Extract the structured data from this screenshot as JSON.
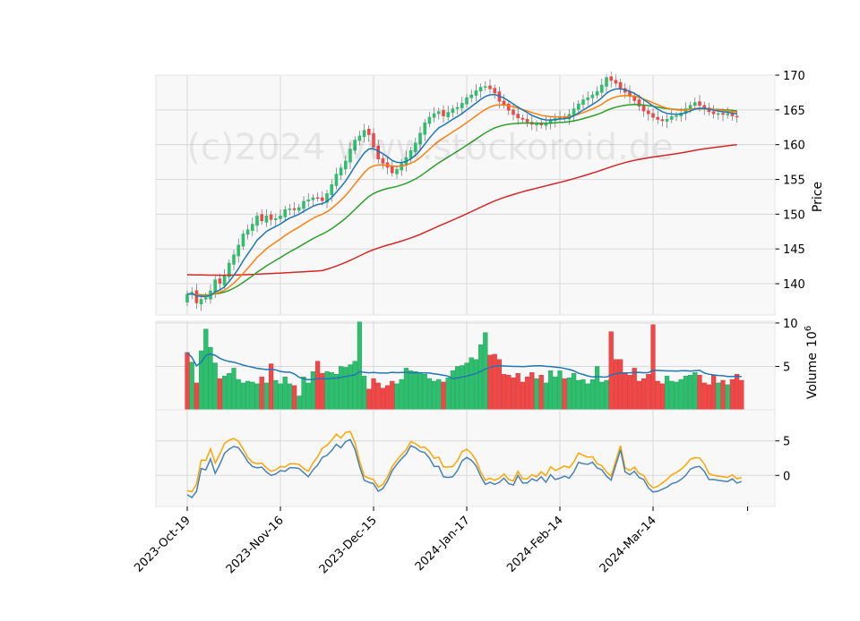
{
  "watermark": "(c)2024 www.stockoroid.de",
  "colors": {
    "panel_bg": "#f8f8f8",
    "grid": "#d9d9d9",
    "up": "#2ebf6e",
    "down": "#f04747",
    "ma_short": "#1f77b4",
    "ma_mid": "#ff7f0e",
    "ma_long": "#2ca02c",
    "ma_200": "#d62728",
    "volume_ma": "#1f77b4",
    "osc_a": "#4682b4",
    "osc_b": "#ffa500"
  },
  "chart_data": {
    "type": "candlestick",
    "price_panel": {
      "ylabel": "Price",
      "ylim": [
        135.5,
        170
      ],
      "yticks": [
        140,
        145,
        150,
        155,
        160,
        165,
        170
      ],
      "grid": true,
      "ticker_position": "right"
    },
    "volume_panel": {
      "ylabel": "Volume  $10^6$",
      "ylabel_text": "Volume",
      "ylabel_exp": "6",
      "ylabel_base": "10",
      "ylim": [
        0,
        10.2
      ],
      "yticks": [
        5,
        10
      ],
      "volume_ma_window": 20
    },
    "oscillator_panel": {
      "ylim": [
        -4.5,
        9.5
      ],
      "yticks": [
        0,
        5
      ]
    },
    "xticks": [
      {
        "index": 0,
        "label": "2023-Oct-19"
      },
      {
        "index": 20,
        "label": "2023-Nov-16"
      },
      {
        "index": 40,
        "label": "2023-Dec-15"
      },
      {
        "index": 60,
        "label": "2024-Jan-17"
      },
      {
        "index": 80,
        "label": "2024-Feb-14"
      },
      {
        "index": 100,
        "label": "2024-Mar-14"
      }
    ],
    "n_bars": 120,
    "start_close": 138.5,
    "close_changes": [
      0.3,
      -1.6,
      0.6,
      0.2,
      1.0,
      1.6,
      -0.6,
      1.2,
      1.8,
      1.2,
      1.4,
      1.6,
      0.6,
      0.8,
      1.2,
      -0.8,
      0.8,
      -0.6,
      0.2,
      0.4,
      0.9,
      0.1,
      -0.2,
      0.4,
      0.9,
      0.2,
      0.3,
      -0.1,
      -0.4,
      1.1,
      1.3,
      1.5,
      0.9,
      1.0,
      1.7,
      1.3,
      0.6,
      0.8,
      -0.7,
      -1.8,
      -1.7,
      -0.6,
      -0.6,
      -0.8,
      0.6,
      0.8,
      0.9,
      1.0,
      1.1,
      1.4,
      1.5,
      0.8,
      0.5,
      0.3,
      -0.7,
      0.6,
      0.5,
      0.2,
      0.6,
      0.8,
      0.4,
      0.6,
      0.5,
      0.1,
      -0.4,
      -0.6,
      -1.2,
      -0.5,
      -0.8,
      -0.6,
      -0.5,
      -0.2,
      -0.4,
      -0.3,
      0.1,
      -0.2,
      0.3,
      0.4,
      0.3,
      0.2,
      -0.2,
      0.6,
      0.8,
      0.7,
      0.6,
      0.3,
      0.4,
      0.5,
      0.9,
      1.1,
      -0.5,
      -0.4,
      -0.8,
      -0.5,
      -0.6,
      -0.6,
      -0.8,
      -0.7,
      -0.4,
      -0.5,
      -0.3,
      -0.2,
      0.3,
      0.4,
      0.1,
      0.4,
      0.6,
      0.5,
      0.4,
      -0.5,
      -0.4,
      -0.5,
      -0.3,
      0.1,
      -0.2,
      0.2,
      -0.4,
      -0.1
    ],
    "volume": [
      6.6,
      5.5,
      3.1,
      6.8,
      9.3,
      7.2,
      5.4,
      3.6,
      3.9,
      4.2,
      4.8,
      3.5,
      3.1,
      3.3,
      3.2,
      3.0,
      3.8,
      3.1,
      5.3,
      3.4,
      3.0,
      3.8,
      3.0,
      2.8,
      1.6,
      3.8,
      3.1,
      4.4,
      5.6,
      4.2,
      4.4,
      4.3,
      4.1,
      5.0,
      4.9,
      5.2,
      5.6,
      10.2,
      3.9,
      2.4,
      3.6,
      3.1,
      2.5,
      2.8,
      3.3,
      3.0,
      3.5,
      4.8,
      4.5,
      4.4,
      4.3,
      4.1,
      3.6,
      3.3,
      3.5,
      3.2,
      3.7,
      4.5,
      5.0,
      5.1,
      5.4,
      6.0,
      5.8,
      7.5,
      8.9,
      6.3,
      6.4,
      5.8,
      4.1,
      4.0,
      3.7,
      4.2,
      3.2,
      3.8,
      4.3,
      3.6,
      4.0,
      3.1,
      4.5,
      3.8,
      4.5,
      3.6,
      3.7,
      4.2,
      3.4,
      3.5,
      3.0,
      3.5,
      5.0,
      3.2,
      3.4,
      9.0,
      5.8,
      5.8,
      4.3,
      4.0,
      4.8,
      3.3,
      3.6,
      4.1,
      9.8,
      3.3,
      3.0,
      3.9,
      3.3,
      3.2,
      3.5,
      3.9,
      4.0,
      4.3,
      4.0,
      3.1,
      2.9,
      4.0,
      3.1,
      3.4,
      2.9,
      3.5,
      4.1,
      3.4
    ],
    "osc_a": [
      -2.8,
      -3.2,
      -2.3,
      1.0,
      0.8,
      2.4,
      0.3,
      1.6,
      3.2,
      3.8,
      4.2,
      4.0,
      3.1,
      2.0,
      1.3,
      1.1,
      1.2,
      0.5,
      0.0,
      0.2,
      0.7,
      0.6,
      1.1,
      1.1,
      1.0,
      0.4,
      -0.2,
      0.8,
      1.5,
      2.6,
      2.9,
      3.6,
      4.5,
      4.0,
      4.9,
      5.2,
      3.8,
      1.3,
      -0.7,
      -1.0,
      -1.2,
      -2.3,
      -1.9,
      -0.8,
      0.7,
      1.6,
      2.4,
      3.1,
      4.3,
      4.0,
      3.5,
      3.3,
      2.5,
      1.3,
      1.3,
      -0.2,
      -0.3,
      -0.2,
      0.7,
      2.1,
      2.6,
      2.2,
      1.4,
      -0.1,
      -1.3,
      -1.0,
      -1.3,
      -1.0,
      -0.4,
      -1.2,
      -1.4,
      0.0,
      -1.1,
      -1.1,
      -0.5,
      -0.8,
      -0.2,
      -1.0,
      0.1,
      -0.6,
      -0.4,
      -0.1,
      -0.4,
      0.5,
      1.9,
      1.7,
      1.6,
      1.9,
      1.1,
      0.8,
      -0.1,
      -0.7,
      1.5,
      3.7,
      0.5,
      0.1,
      0.6,
      -0.3,
      -0.6,
      -1.8,
      -2.4,
      -2.3,
      -2.0,
      -1.7,
      -1.2,
      -1.0,
      -0.6,
      0.0,
      0.9,
      1.2,
      1.3,
      0.6,
      -0.6,
      -0.6,
      -0.7,
      -0.8,
      -0.9,
      -0.5,
      -1.1,
      -0.9
    ]
  }
}
